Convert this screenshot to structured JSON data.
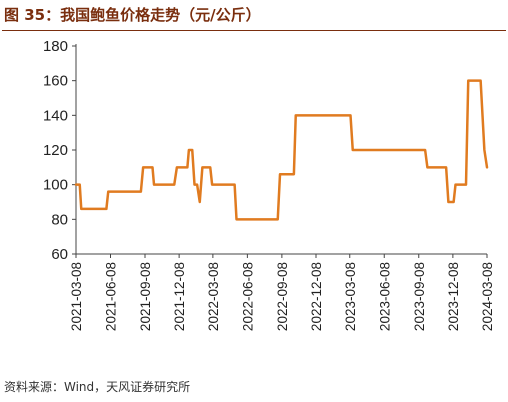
{
  "page": {
    "title": "图 35：我国鲍鱼价格走势（元/公斤）",
    "source": "资料来源：Wind，天风证券研究所"
  },
  "colors": {
    "line": "#e07b20",
    "axis": "#444444",
    "title": "#7a2e0e"
  },
  "chart_data": {
    "type": "line",
    "title": "",
    "xlabel": "",
    "ylabel": "",
    "ylim": [
      60,
      180
    ],
    "yticks": [
      60,
      80,
      100,
      120,
      140,
      160,
      180
    ],
    "grid": false,
    "x_tick_labels": [
      "2021-03-08",
      "2021-06-08",
      "2021-09-08",
      "2021-12-08",
      "2022-03-08",
      "2022-06-08",
      "2022-09-08",
      "2022-12-08",
      "2023-03-08",
      "2023-06-08",
      "2023-09-08",
      "2023-12-08",
      "2024-03-08"
    ],
    "series": [
      {
        "name": "",
        "points": [
          [
            "2021-03-08",
            100
          ],
          [
            "2021-03-18",
            100
          ],
          [
            "2021-03-22",
            86
          ],
          [
            "2021-05-28",
            86
          ],
          [
            "2021-06-02",
            96
          ],
          [
            "2021-08-28",
            96
          ],
          [
            "2021-09-03",
            110
          ],
          [
            "2021-09-28",
            110
          ],
          [
            "2021-10-02",
            100
          ],
          [
            "2021-11-25",
            100
          ],
          [
            "2021-12-02",
            110
          ],
          [
            "2021-12-30",
            110
          ],
          [
            "2022-01-03",
            120
          ],
          [
            "2022-01-12",
            120
          ],
          [
            "2022-01-18",
            100
          ],
          [
            "2022-01-25",
            100
          ],
          [
            "2022-02-01",
            90
          ],
          [
            "2022-02-08",
            110
          ],
          [
            "2022-03-01",
            110
          ],
          [
            "2022-03-06",
            100
          ],
          [
            "2022-05-05",
            100
          ],
          [
            "2022-05-10",
            80
          ],
          [
            "2022-08-28",
            80
          ],
          [
            "2022-09-03",
            106
          ],
          [
            "2022-10-10",
            106
          ],
          [
            "2022-10-15",
            140
          ],
          [
            "2023-03-10",
            140
          ],
          [
            "2023-03-16",
            120
          ],
          [
            "2023-09-25",
            120
          ],
          [
            "2023-10-01",
            110
          ],
          [
            "2023-11-20",
            110
          ],
          [
            "2023-11-26",
            90
          ],
          [
            "2023-12-10",
            90
          ],
          [
            "2023-12-15",
            100
          ],
          [
            "2024-01-12",
            100
          ],
          [
            "2024-01-18",
            160
          ],
          [
            "2024-02-20",
            160
          ],
          [
            "2024-03-01",
            120
          ],
          [
            "2024-03-08",
            110
          ]
        ]
      }
    ]
  }
}
